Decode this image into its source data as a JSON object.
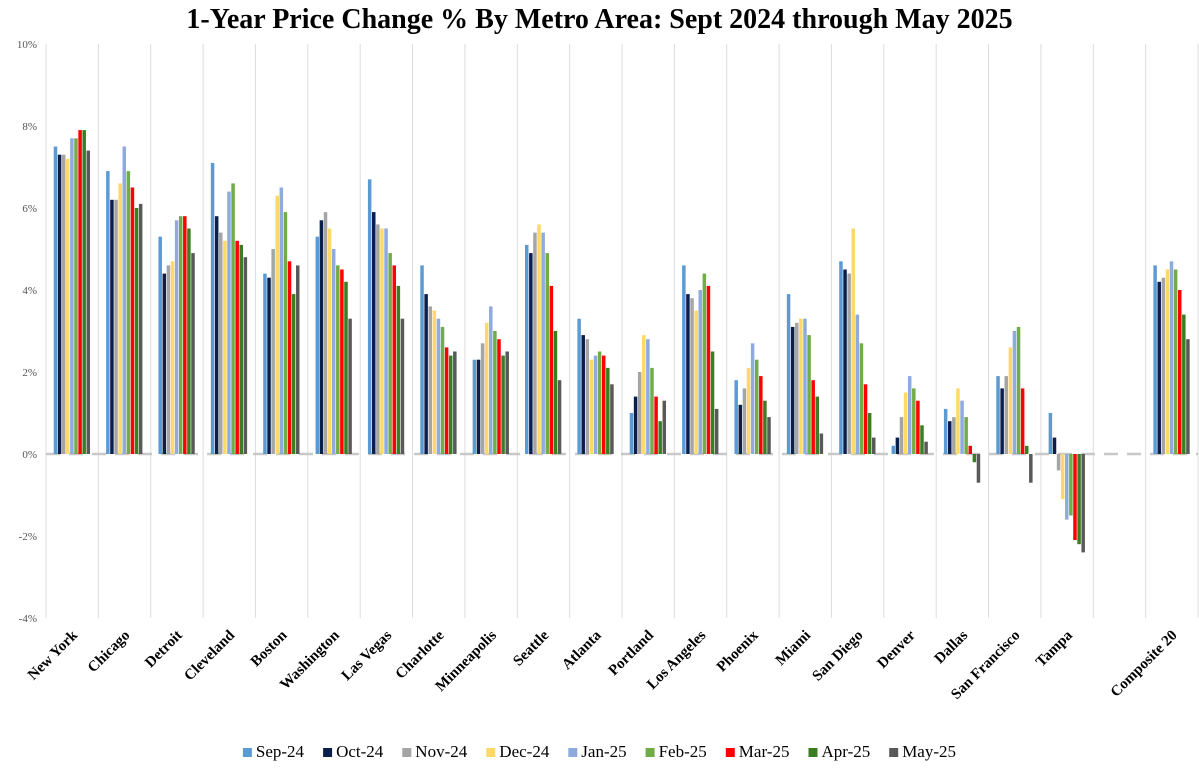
{
  "chart_data": {
    "type": "bar",
    "title": "1-Year Price Change % By Metro Area: Sept 2024 through May 2025",
    "xlabel": "",
    "ylabel": "",
    "ylim": [
      -4,
      10
    ],
    "yticks": [
      -4,
      -2,
      0,
      2,
      4,
      6,
      8,
      10
    ],
    "ytick_labels": [
      "-4%",
      "-2%",
      "0%",
      "2%",
      "4%",
      "6%",
      "8%",
      "10%"
    ],
    "legend_position": "bottom",
    "categories": [
      "New York",
      "Chicago",
      "Detroit",
      "Cleveland",
      "Boston",
      "Washington",
      "Las Vegas",
      "Charlotte",
      "Minneapolis",
      "Seattle",
      "Atlanta",
      "Portland",
      "Los Angeles",
      "Phoenix",
      "Miami",
      "San Diego",
      "Denver",
      "Dallas",
      "San Francisco",
      "Tampa",
      "",
      "Composite 20"
    ],
    "series": [
      {
        "name": "Sep-24",
        "color": "#5b9bd5",
        "values": [
          7.5,
          6.9,
          5.3,
          7.1,
          4.4,
          5.3,
          6.7,
          4.6,
          2.3,
          5.1,
          3.3,
          1.0,
          4.6,
          1.8,
          3.9,
          4.7,
          0.2,
          1.1,
          1.9,
          1.0,
          null,
          4.6
        ]
      },
      {
        "name": "Oct-24",
        "color": "#0b1f4d",
        "values": [
          7.3,
          6.2,
          4.4,
          5.8,
          4.3,
          5.7,
          5.9,
          3.9,
          2.3,
          4.9,
          2.9,
          1.4,
          3.9,
          1.2,
          3.1,
          4.5,
          0.4,
          0.8,
          1.6,
          0.4,
          null,
          4.2
        ]
      },
      {
        "name": "Nov-24",
        "color": "#a5a5a5",
        "values": [
          7.3,
          6.2,
          4.6,
          5.4,
          5.0,
          5.9,
          5.6,
          3.6,
          2.7,
          5.4,
          2.8,
          2.0,
          3.8,
          1.6,
          3.2,
          4.4,
          0.9,
          0.9,
          1.9,
          -0.4,
          null,
          4.3
        ]
      },
      {
        "name": "Dec-24",
        "color": "#ffd966",
        "values": [
          7.2,
          6.6,
          4.7,
          5.2,
          6.3,
          5.5,
          5.5,
          3.5,
          3.2,
          5.6,
          2.3,
          2.9,
          3.5,
          2.1,
          3.3,
          5.5,
          1.5,
          1.6,
          2.6,
          -1.1,
          null,
          4.5
        ]
      },
      {
        "name": "Jan-25",
        "color": "#8faadc",
        "values": [
          7.7,
          7.5,
          5.7,
          6.4,
          6.5,
          5.0,
          5.5,
          3.3,
          3.6,
          5.4,
          2.4,
          2.8,
          4.0,
          2.7,
          3.3,
          3.4,
          1.9,
          1.3,
          3.0,
          -1.6,
          null,
          4.7
        ]
      },
      {
        "name": "Feb-25",
        "color": "#70ad47",
        "values": [
          7.7,
          6.9,
          5.8,
          6.6,
          5.9,
          4.6,
          4.9,
          3.1,
          3.0,
          4.9,
          2.5,
          2.1,
          4.4,
          2.3,
          2.9,
          2.7,
          1.6,
          0.9,
          3.1,
          -1.5,
          null,
          4.5
        ]
      },
      {
        "name": "Mar-25",
        "color": "#ff0000",
        "values": [
          7.9,
          6.5,
          5.8,
          5.2,
          4.7,
          4.5,
          4.6,
          2.6,
          2.8,
          4.1,
          2.4,
          1.4,
          4.1,
          1.9,
          1.8,
          1.7,
          1.3,
          0.2,
          1.6,
          -2.1,
          null,
          4.0
        ]
      },
      {
        "name": "Apr-25",
        "color": "#3a7d22",
        "values": [
          7.9,
          6.0,
          5.5,
          5.1,
          3.9,
          4.2,
          4.1,
          2.4,
          2.4,
          3.0,
          2.1,
          0.8,
          2.5,
          1.3,
          1.4,
          1.0,
          0.7,
          -0.2,
          0.2,
          -2.2,
          null,
          3.4
        ]
      },
      {
        "name": "May-25",
        "color": "#595959",
        "values": [
          7.4,
          6.1,
          4.9,
          4.8,
          4.6,
          3.3,
          3.3,
          2.5,
          2.5,
          1.8,
          1.7,
          1.3,
          1.1,
          0.9,
          0.5,
          0.4,
          0.3,
          -0.7,
          -0.7,
          -2.4,
          null,
          2.8
        ]
      }
    ]
  },
  "colors": {
    "gridline": "#dcdcdc",
    "zero_line": "#c8c8c8",
    "background": "#ffffff"
  }
}
